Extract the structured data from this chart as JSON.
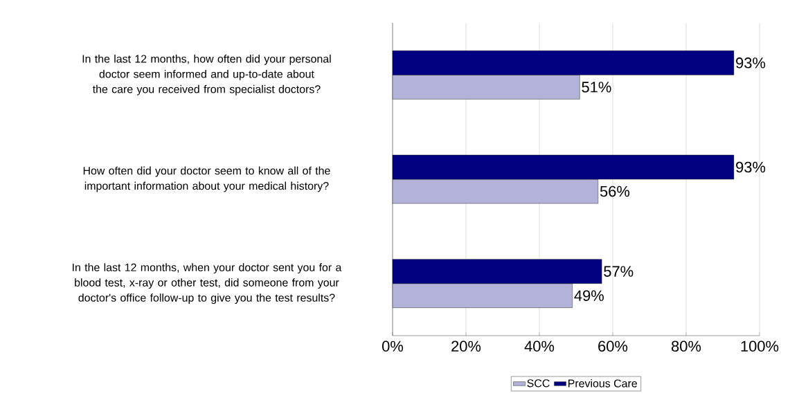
{
  "chart_data": {
    "type": "bar",
    "orientation": "horizontal",
    "categories": [
      "In the last 12 months, how often did your personal doctor seem informed and up-to-date about the care you received from specialist doctors?",
      "How often did your doctor seem to know all of the important information about your medical history?",
      "In the last 12 months, when your doctor sent you for a blood test, x-ray or other test, did someone from your doctor's office follow-up to give you the test results?"
    ],
    "series": [
      {
        "name": "SCC",
        "color": "#b3b3d9",
        "values": [
          51,
          56,
          49
        ],
        "value_labels": [
          "51%",
          "56%",
          "49%"
        ]
      },
      {
        "name": "Previous Care",
        "color": "#000080",
        "values": [
          93,
          93,
          57
        ],
        "value_labels": [
          "93%",
          "93%",
          "57%"
        ]
      }
    ],
    "xlim": [
      0,
      100
    ],
    "xticks": [
      {
        "value": 0,
        "label": "0%"
      },
      {
        "value": 20,
        "label": "20%"
      },
      {
        "value": 40,
        "label": "40%"
      },
      {
        "value": 60,
        "label": "60%"
      },
      {
        "value": 80,
        "label": "80%"
      },
      {
        "value": 100,
        "label": "100%"
      }
    ],
    "grid": "x",
    "legend": "bottom"
  }
}
